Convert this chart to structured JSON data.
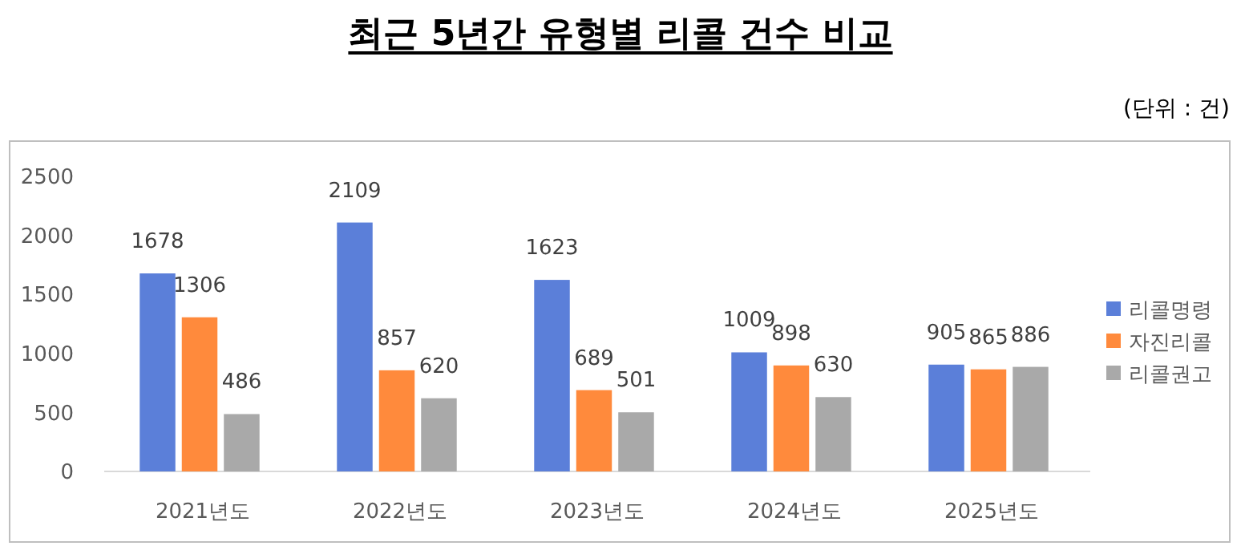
{
  "chart_data": {
    "type": "bar",
    "title": "최근 5년간 유형별 리콜 건수 비교",
    "annotations": [
      "(단위 : 건)"
    ],
    "categories": [
      "2021년도",
      "2022년도",
      "2023년도",
      "2024년도",
      "2025년도"
    ],
    "series": [
      {
        "name": "리콜명령",
        "color": "#5b7fd9",
        "values": [
          1678,
          2109,
          1623,
          1009,
          905
        ]
      },
      {
        "name": "자진리콜",
        "color": "#ff8a3c",
        "values": [
          1306,
          857,
          689,
          898,
          865
        ]
      },
      {
        "name": "리콜권고",
        "color": "#a9a9a9",
        "values": [
          486,
          620,
          501,
          630,
          886
        ]
      }
    ],
    "ylim": [
      0,
      2500
    ],
    "yticks": [
      0,
      500,
      1000,
      1500,
      2000,
      2500
    ],
    "grid": false,
    "legend": "right",
    "data_labels": true
  }
}
